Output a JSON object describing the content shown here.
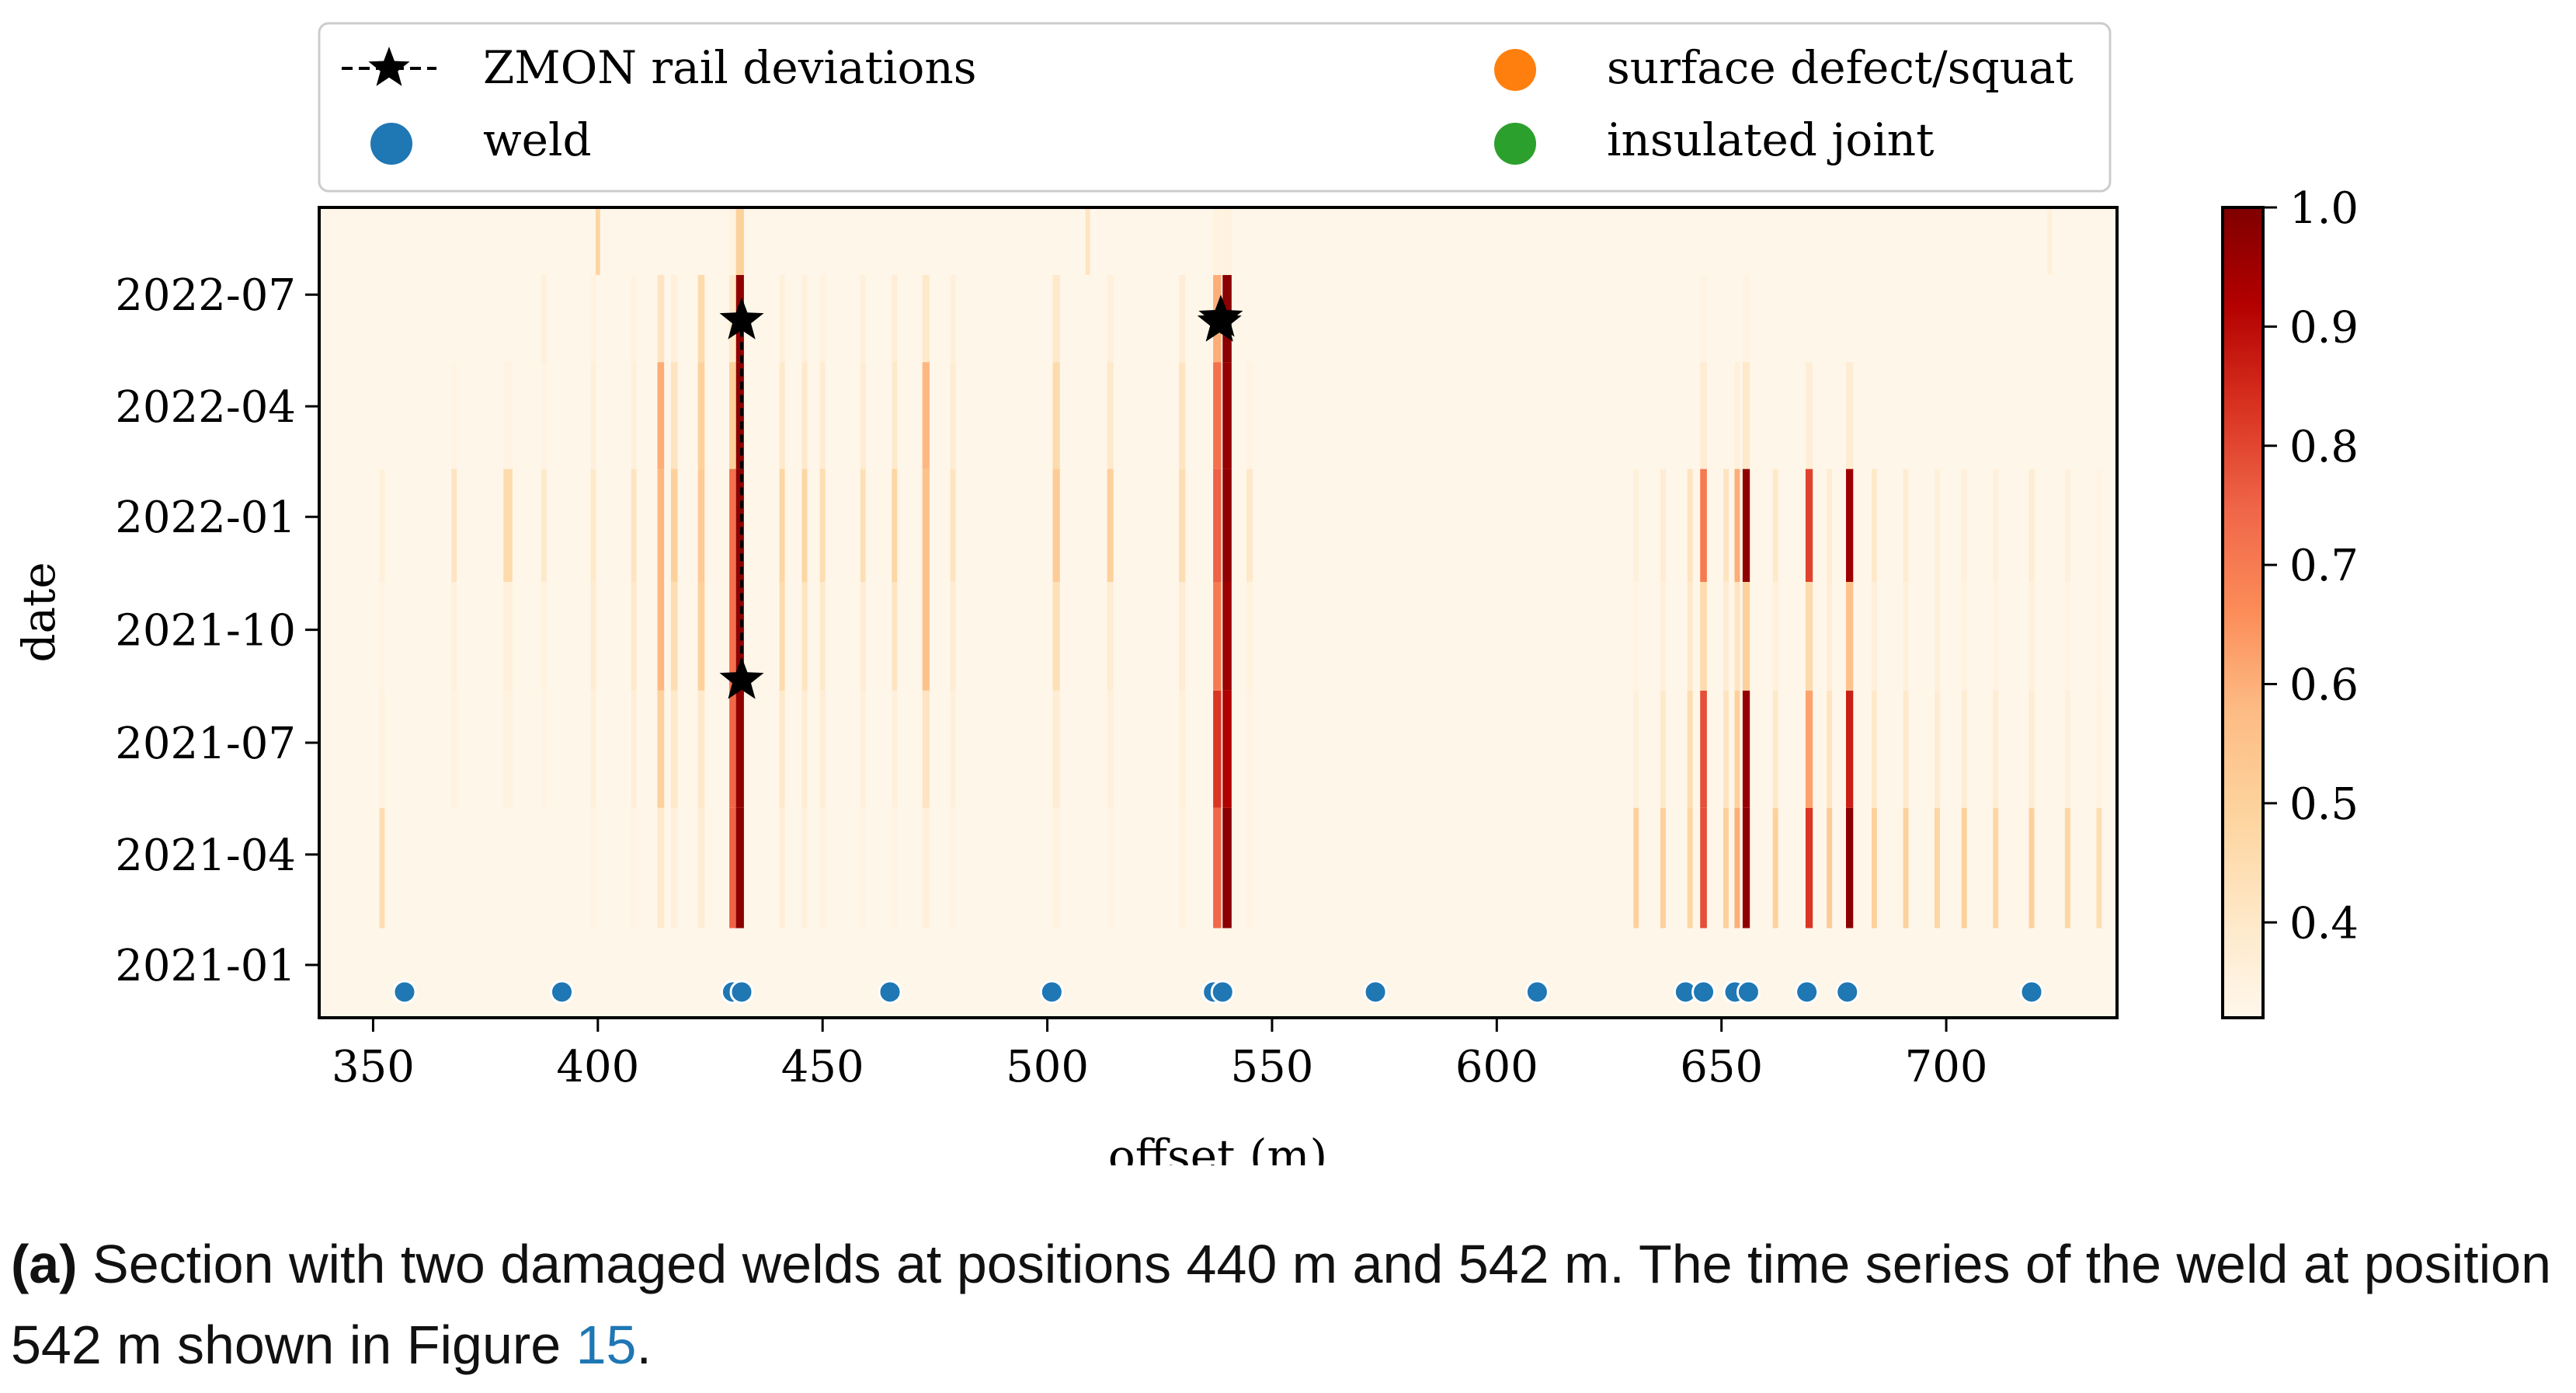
{
  "chart_data": {
    "type": "heatmap",
    "xlabel": "offset (m)",
    "ylabel": "date",
    "xlim": [
      338,
      738
    ],
    "x_ticks": [
      350,
      400,
      450,
      500,
      550,
      600,
      650,
      700
    ],
    "y_ticks": [
      "2021-01",
      "2021-04",
      "2021-07",
      "2021-10",
      "2022-01",
      "2022-04",
      "2022-07"
    ],
    "colorbar": {
      "colormap": "OrRd",
      "range": [
        0.32,
        1.0
      ],
      "ticks": [
        0.4,
        0.5,
        0.6,
        0.7,
        0.8,
        0.9,
        1.0
      ],
      "tick_labels": [
        "0.4",
        "0.5",
        "0.6",
        "0.7",
        "0.8",
        "0.9",
        "1.0"
      ]
    },
    "legend": {
      "placement": "top",
      "entries": [
        {
          "label": "ZMON rail deviations",
          "marker": "star-dashed-line",
          "color": "#000000"
        },
        {
          "label": "surface defect/squat",
          "marker": "circle",
          "color": "#ff7f0e"
        },
        {
          "label": "weld",
          "marker": "circle",
          "color": "#1f77b4"
        },
        {
          "label": "insulated joint",
          "marker": "circle",
          "color": "#2ca02c"
        }
      ]
    },
    "measurement_rows": [
      "2021-03-21",
      "2021-06-27",
      "2021-09-28",
      "2021-12-21",
      "2022-03-31",
      "2022-06-13",
      "2022-08-20"
    ],
    "cells": [
      {
        "x": 431.5,
        "w": 2,
        "v": [
          0.98,
          0.97,
          0.98,
          0.98,
          0.98,
          0.97,
          0.5
        ]
      },
      {
        "x": 430,
        "w": 1.5,
        "v": [
          0.75,
          0.74,
          0.72,
          0.72,
          0.5,
          0.4,
          0.35
        ]
      },
      {
        "x": 540,
        "w": 2,
        "v": [
          0.98,
          0.92,
          0.95,
          0.97,
          0.96,
          0.98,
          0.35
        ]
      },
      {
        "x": 537.8,
        "w": 1.8,
        "v": [
          0.74,
          0.82,
          0.7,
          0.75,
          0.72,
          0.6,
          0.35
        ]
      },
      {
        "x": 655.5,
        "w": 1.6,
        "v": [
          0.97,
          0.96,
          0.5,
          0.97,
          0.4,
          0.34,
          0.33
        ]
      },
      {
        "x": 653.5,
        "w": 1.2,
        "v": [
          0.6,
          0.5,
          0.42,
          0.6,
          0.36,
          0.33,
          0.33
        ]
      },
      {
        "x": 646,
        "w": 1.5,
        "v": [
          0.78,
          0.78,
          0.46,
          0.7,
          0.38,
          0.34,
          0.33
        ]
      },
      {
        "x": 669.5,
        "w": 1.6,
        "v": [
          0.82,
          0.62,
          0.46,
          0.8,
          0.37,
          0.33,
          0.33
        ]
      },
      {
        "x": 678.5,
        "w": 1.6,
        "v": [
          0.98,
          0.86,
          0.55,
          0.95,
          0.38,
          0.33,
          0.33
        ]
      },
      {
        "x": 414,
        "w": 1.5,
        "v": [
          0.4,
          0.5,
          0.58,
          0.58,
          0.6,
          0.42,
          0.33
        ]
      },
      {
        "x": 417,
        "w": 1.5,
        "v": [
          0.36,
          0.4,
          0.45,
          0.5,
          0.42,
          0.36,
          0.33
        ]
      },
      {
        "x": 423,
        "w": 1.5,
        "v": [
          0.38,
          0.4,
          0.5,
          0.52,
          0.5,
          0.46,
          0.33
        ]
      },
      {
        "x": 473,
        "w": 1.6,
        "v": [
          0.36,
          0.42,
          0.55,
          0.55,
          0.58,
          0.4,
          0.33
        ]
      },
      {
        "x": 441,
        "w": 1.2,
        "v": [
          0.37,
          0.4,
          0.46,
          0.48,
          0.4,
          0.36,
          0.33
        ]
      },
      {
        "x": 446,
        "w": 1.2,
        "v": [
          0.36,
          0.38,
          0.42,
          0.48,
          0.4,
          0.36,
          0.33
        ]
      },
      {
        "x": 450,
        "w": 1.2,
        "v": [
          0.35,
          0.37,
          0.4,
          0.45,
          0.38,
          0.35,
          0.33
        ]
      },
      {
        "x": 459,
        "w": 1.2,
        "v": [
          0.34,
          0.36,
          0.38,
          0.44,
          0.38,
          0.36,
          0.33
        ]
      },
      {
        "x": 466,
        "w": 1.2,
        "v": [
          0.34,
          0.36,
          0.42,
          0.48,
          0.4,
          0.37,
          0.33
        ]
      },
      {
        "x": 479,
        "w": 1.2,
        "v": [
          0.34,
          0.36,
          0.38,
          0.42,
          0.38,
          0.36,
          0.33
        ]
      },
      {
        "x": 502,
        "w": 1.6,
        "v": [
          0.35,
          0.38,
          0.44,
          0.52,
          0.46,
          0.4,
          0.33
        ]
      },
      {
        "x": 514,
        "w": 1.4,
        "v": [
          0.34,
          0.36,
          0.38,
          0.5,
          0.4,
          0.36,
          0.33
        ]
      },
      {
        "x": 530,
        "w": 1.4,
        "v": [
          0.35,
          0.36,
          0.38,
          0.45,
          0.42,
          0.37,
          0.33
        ]
      },
      {
        "x": 545,
        "w": 1.4,
        "v": [
          0.34,
          0.34,
          0.35,
          0.4,
          0.34,
          0.33,
          0.33
        ]
      },
      {
        "x": 380,
        "w": 2,
        "v": [
          0.33,
          0.35,
          0.36,
          0.46,
          0.34,
          0.33,
          0.33
        ]
      },
      {
        "x": 368,
        "w": 1.2,
        "v": [
          0.33,
          0.35,
          0.36,
          0.42,
          0.34,
          0.33,
          0.33
        ]
      },
      {
        "x": 388,
        "w": 1.2,
        "v": [
          0.33,
          0.34,
          0.35,
          0.4,
          0.34,
          0.36,
          0.33
        ]
      },
      {
        "x": 399,
        "w": 1.2,
        "v": [
          0.34,
          0.36,
          0.38,
          0.4,
          0.36,
          0.35,
          0.33
        ]
      },
      {
        "x": 408,
        "w": 1.2,
        "v": [
          0.34,
          0.37,
          0.4,
          0.42,
          0.36,
          0.35,
          0.33
        ]
      },
      {
        "x": 352,
        "w": 1.2,
        "v": [
          0.45,
          0.35,
          0.34,
          0.36,
          0.33,
          0.33,
          0.33
        ]
      },
      {
        "x": 400,
        "w": 1,
        "v": [
          0.33,
          0.33,
          0.33,
          0.33,
          0.33,
          0.33,
          0.48
        ]
      },
      {
        "x": 509,
        "w": 1,
        "v": [
          0.33,
          0.33,
          0.33,
          0.33,
          0.33,
          0.33,
          0.42
        ]
      },
      {
        "x": 723,
        "w": 1,
        "v": [
          0.33,
          0.33,
          0.33,
          0.33,
          0.33,
          0.33,
          0.36
        ]
      },
      {
        "x": 631,
        "w": 1.2,
        "v": [
          0.5,
          0.36,
          0.34,
          0.36,
          0.33,
          0.33,
          0.33
        ]
      },
      {
        "x": 637,
        "w": 1.2,
        "v": [
          0.5,
          0.4,
          0.36,
          0.38,
          0.33,
          0.33,
          0.33
        ]
      },
      {
        "x": 643,
        "w": 1.2,
        "v": [
          0.48,
          0.45,
          0.4,
          0.42,
          0.33,
          0.33,
          0.33
        ]
      },
      {
        "x": 651,
        "w": 1.2,
        "v": [
          0.5,
          0.42,
          0.38,
          0.42,
          0.33,
          0.33,
          0.33
        ]
      },
      {
        "x": 662,
        "w": 1.2,
        "v": [
          0.5,
          0.4,
          0.36,
          0.4,
          0.33,
          0.33,
          0.33
        ]
      },
      {
        "x": 674,
        "w": 1.2,
        "v": [
          0.52,
          0.42,
          0.37,
          0.38,
          0.33,
          0.33,
          0.33
        ]
      },
      {
        "x": 684,
        "w": 1.2,
        "v": [
          0.5,
          0.4,
          0.36,
          0.4,
          0.33,
          0.33,
          0.33
        ]
      },
      {
        "x": 691,
        "w": 1.2,
        "v": [
          0.5,
          0.4,
          0.36,
          0.38,
          0.33,
          0.33,
          0.33
        ]
      },
      {
        "x": 698,
        "w": 1.2,
        "v": [
          0.48,
          0.38,
          0.36,
          0.36,
          0.33,
          0.33,
          0.33
        ]
      },
      {
        "x": 704,
        "w": 1.2,
        "v": [
          0.5,
          0.38,
          0.35,
          0.36,
          0.33,
          0.33,
          0.33
        ]
      },
      {
        "x": 711,
        "w": 1.2,
        "v": [
          0.48,
          0.38,
          0.35,
          0.36,
          0.33,
          0.33,
          0.33
        ]
      },
      {
        "x": 719,
        "w": 1.2,
        "v": [
          0.5,
          0.38,
          0.36,
          0.38,
          0.33,
          0.33,
          0.33
        ]
      },
      {
        "x": 727,
        "w": 1.2,
        "v": [
          0.48,
          0.36,
          0.34,
          0.36,
          0.33,
          0.33,
          0.33
        ]
      },
      {
        "x": 734,
        "w": 1.2,
        "v": [
          0.45,
          0.35,
          0.34,
          0.34,
          0.33,
          0.33,
          0.33
        ]
      }
    ],
    "zmon_deviations": [
      {
        "x": 432,
        "date": "2021-08-21"
      },
      {
        "x": 432,
        "date": "2022-06-10"
      },
      {
        "x": 538.3,
        "date": "2022-06-08"
      },
      {
        "x": 538.6,
        "date": "2022-06-12"
      }
    ],
    "welds": {
      "date": "2020-12-10",
      "offsets": [
        357,
        392,
        430,
        432,
        465,
        501,
        537,
        539,
        573,
        609,
        642,
        646,
        653,
        656,
        669,
        678,
        719
      ]
    }
  },
  "caption": {
    "label": "(a)",
    "text": " Section with two damaged welds at positions 440 m and 542 m. The time series of the weld at position 542 m shown in Figure ",
    "ref": "15",
    "end": "."
  }
}
